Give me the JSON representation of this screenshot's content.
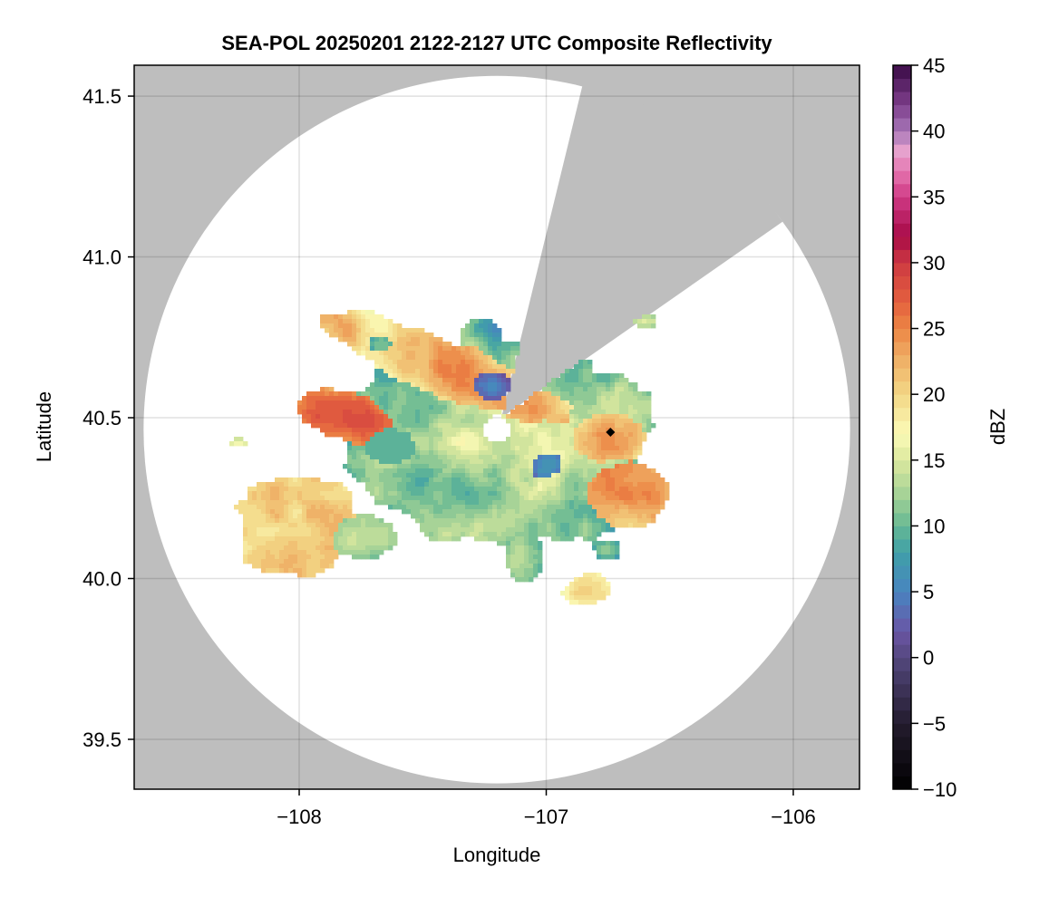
{
  "chart_data": {
    "type": "heatmap",
    "title": "SEA-POL 20250201 2122-2127 UTC Composite Reflectivity",
    "xlabel": "Longitude",
    "ylabel": "Latitude",
    "xlim": [
      -108.668,
      -105.732
    ],
    "ylim": [
      39.345,
      41.596
    ],
    "xticks": [
      {
        "v": -108,
        "label": "−108"
      },
      {
        "v": -107,
        "label": "−107"
      },
      {
        "v": -106,
        "label": "−106"
      }
    ],
    "yticks": [
      {
        "v": 39.5,
        "label": "39.5"
      },
      {
        "v": 40.0,
        "label": "40.0"
      },
      {
        "v": 40.5,
        "label": "40.5"
      },
      {
        "v": 41.0,
        "label": "41.0"
      },
      {
        "v": 41.5,
        "label": "41.5"
      }
    ],
    "grid": true,
    "background_color": "#bebebe",
    "radar": {
      "lon": -107.2,
      "lat": 40.463,
      "range_lon_deg": 1.43,
      "range_lat_deg": 1.1,
      "blocked_azimuth_deg": [
        14,
        54
      ],
      "inner_hole_lon_deg": 0.055
    },
    "marker": {
      "lon": -106.74,
      "lat": 40.455,
      "shape": "diamond",
      "color": "#000000"
    },
    "colorbar": {
      "label": "dBZ",
      "range": [
        -10,
        45
      ],
      "step": 1,
      "ticks": [
        {
          "v": -10,
          "label": "−10"
        },
        {
          "v": -5,
          "label": "−5"
        },
        {
          "v": 0,
          "label": "0"
        },
        {
          "v": 5,
          "label": "5"
        },
        {
          "v": 10,
          "label": "10"
        },
        {
          "v": 15,
          "label": "15"
        },
        {
          "v": 20,
          "label": "20"
        },
        {
          "v": 25,
          "label": "25"
        },
        {
          "v": 30,
          "label": "30"
        },
        {
          "v": 35,
          "label": "35"
        },
        {
          "v": 40,
          "label": "40"
        },
        {
          "v": 45,
          "label": "45"
        }
      ],
      "stops": [
        [
          -10,
          "#000000"
        ],
        [
          -5,
          "#231c2e"
        ],
        [
          0,
          "#54487e"
        ],
        [
          2,
          "#6a55a5"
        ],
        [
          5,
          "#4884c0"
        ],
        [
          8,
          "#3fa0a8"
        ],
        [
          10,
          "#66b894"
        ],
        [
          12,
          "#9ccf95"
        ],
        [
          15,
          "#dbe89e"
        ],
        [
          17,
          "#fbfbb7"
        ],
        [
          20,
          "#f3d786"
        ],
        [
          23,
          "#eeaa62"
        ],
        [
          25,
          "#ec8645"
        ],
        [
          27,
          "#e4603e"
        ],
        [
          30,
          "#cd3a42"
        ],
        [
          32,
          "#a70a47"
        ],
        [
          35,
          "#cf3a85"
        ],
        [
          37,
          "#e577b1"
        ],
        [
          38.5,
          "#e6a1cd"
        ],
        [
          40,
          "#a777b8"
        ],
        [
          42,
          "#7e3f8c"
        ],
        [
          45,
          "#3a0a45"
        ]
      ]
    },
    "echo_regions": [
      {
        "name": "main-stratiform",
        "lon": -107.19,
        "lat": 40.44,
        "rx": 0.62,
        "ry": 0.33,
        "rot": 5,
        "dbz": 13,
        "var": 6
      },
      {
        "name": "nw-band",
        "lon": -107.42,
        "lat": 40.66,
        "rx": 0.5,
        "ry": 0.09,
        "rot": 22,
        "dbz": 23,
        "var": 5
      },
      {
        "name": "west-core",
        "lon": -107.8,
        "lat": 40.5,
        "rx": 0.2,
        "ry": 0.075,
        "rot": 15,
        "dbz": 28,
        "var": 4
      },
      {
        "name": "teal-patch",
        "lon": -107.63,
        "lat": 40.41,
        "rx": 0.1,
        "ry": 0.055,
        "rot": 0,
        "dbz": 9,
        "var": 0
      },
      {
        "name": "blue-north",
        "lon": -107.22,
        "lat": 40.6,
        "rx": 0.08,
        "ry": 0.05,
        "rot": 0,
        "dbz": 4,
        "var": 3
      },
      {
        "name": "blue-southeast",
        "lon": -107.0,
        "lat": 40.35,
        "rx": 0.07,
        "ry": 0.04,
        "rot": -20,
        "dbz": 5,
        "var": 3
      },
      {
        "name": "sw-cluster",
        "lon": -108.01,
        "lat": 40.17,
        "rx": 0.26,
        "ry": 0.16,
        "rot": -30,
        "dbz": 23,
        "var": 5
      },
      {
        "name": "sw-light",
        "lon": -107.74,
        "lat": 40.13,
        "rx": 0.15,
        "ry": 0.07,
        "rot": 0,
        "dbz": 14,
        "var": 3
      },
      {
        "name": "east-upper",
        "lon": -106.74,
        "lat": 40.43,
        "rx": 0.15,
        "ry": 0.08,
        "rot": 0,
        "dbz": 22,
        "var": 4
      },
      {
        "name": "east-core",
        "lon": -106.68,
        "lat": 40.27,
        "rx": 0.16,
        "ry": 0.1,
        "rot": 0,
        "dbz": 26,
        "var": 4
      },
      {
        "name": "south-cell",
        "lon": -107.09,
        "lat": 40.07,
        "rx": 0.08,
        "ry": 0.08,
        "rot": 0,
        "dbz": 13,
        "var": 4
      },
      {
        "name": "southeast-cell",
        "lon": -106.84,
        "lat": 39.96,
        "rx": 0.1,
        "ry": 0.05,
        "rot": -15,
        "dbz": 20,
        "var": 4
      },
      {
        "name": "east-small-cell",
        "lon": -106.75,
        "lat": 40.09,
        "rx": 0.05,
        "ry": 0.03,
        "rot": 0,
        "dbz": 12,
        "var": 2
      },
      {
        "name": "nw-small-cell",
        "lon": -107.67,
        "lat": 40.73,
        "rx": 0.05,
        "ry": 0.03,
        "rot": 0,
        "dbz": 12,
        "var": 2
      },
      {
        "name": "ne-edge-cell",
        "lon": -106.6,
        "lat": 40.8,
        "rx": 0.05,
        "ry": 0.02,
        "rot": 0,
        "dbz": 15,
        "var": 2
      },
      {
        "name": "far-west-cell",
        "lon": -108.25,
        "lat": 40.42,
        "rx": 0.04,
        "ry": 0.015,
        "rot": 0,
        "dbz": 18,
        "var": 2
      }
    ]
  }
}
